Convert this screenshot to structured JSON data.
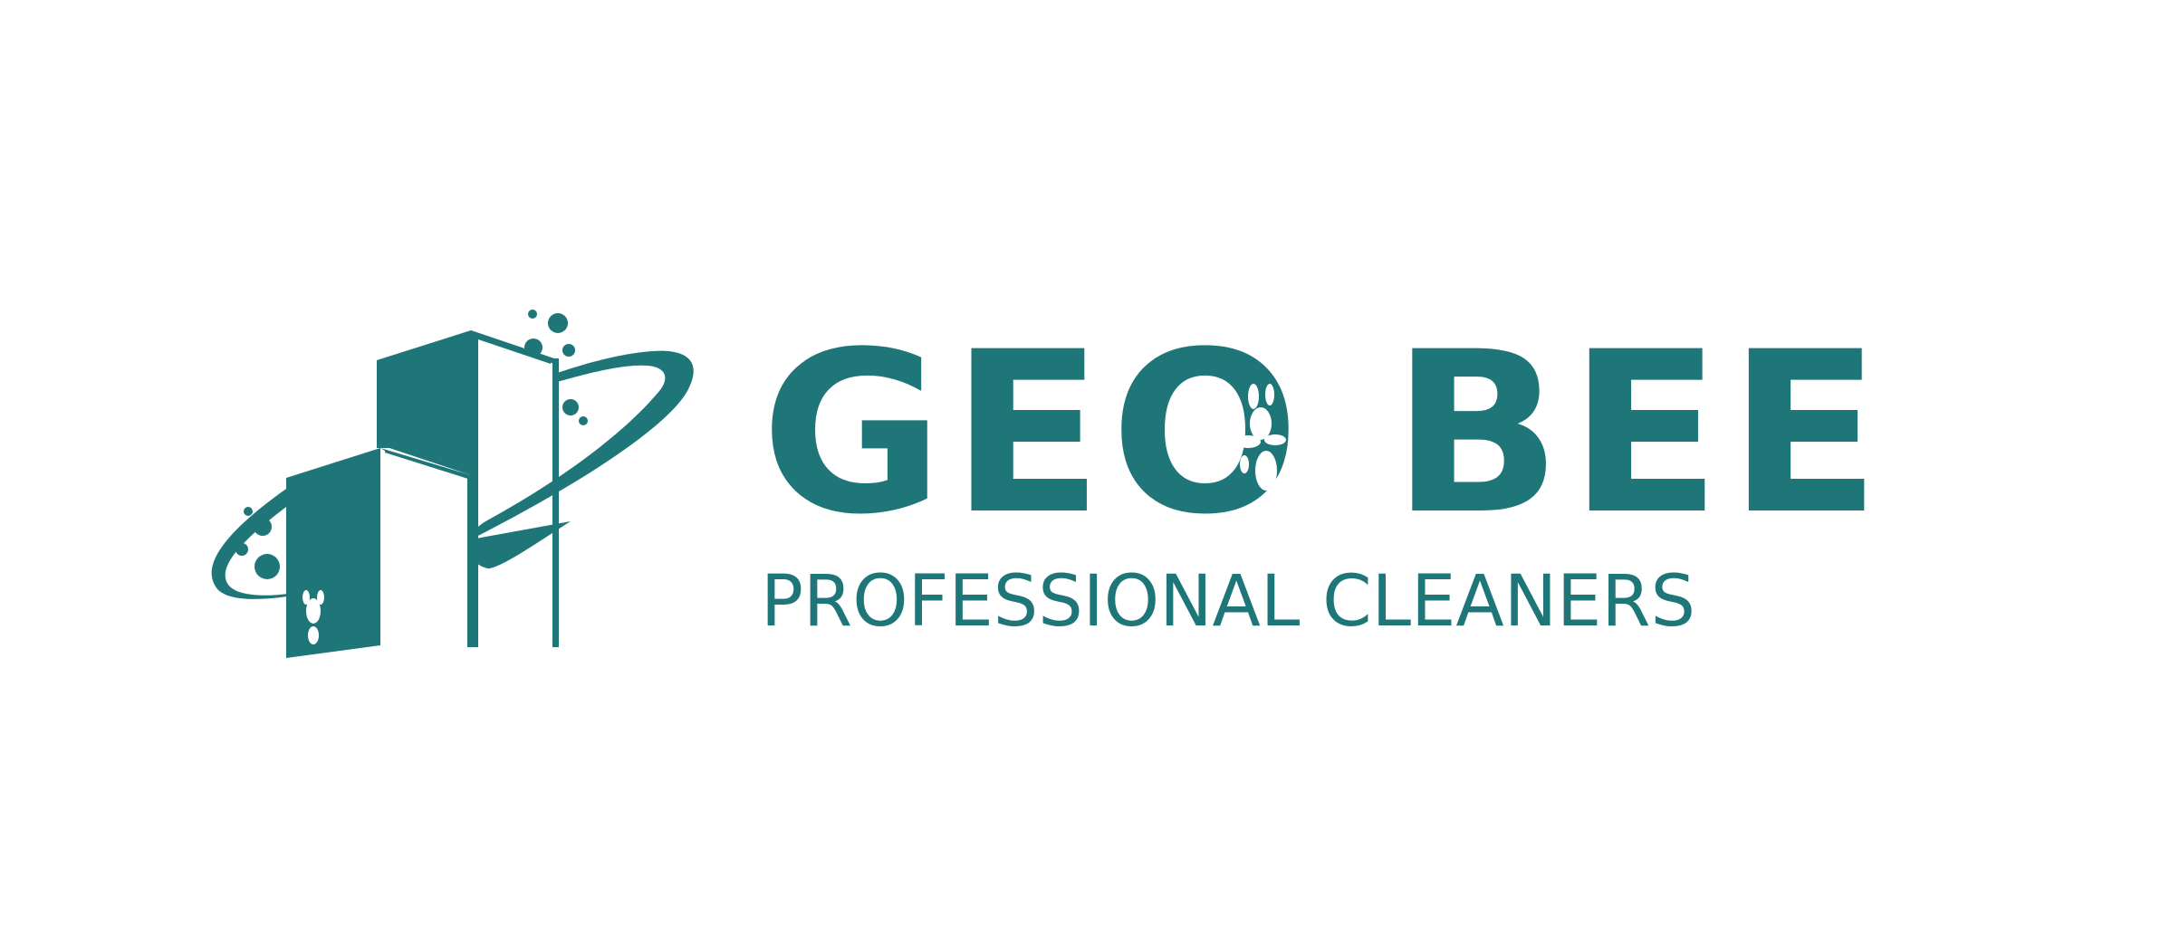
{
  "logo": {
    "brand_name": "GEO BEE",
    "tagline": "PROFESSIONAL CLEANERS",
    "colors": {
      "primary": "#1f7679",
      "background": "#ffffff"
    },
    "icons": [
      "building-icon",
      "swoosh-icon",
      "bubble-icon",
      "bee-icon"
    ]
  }
}
